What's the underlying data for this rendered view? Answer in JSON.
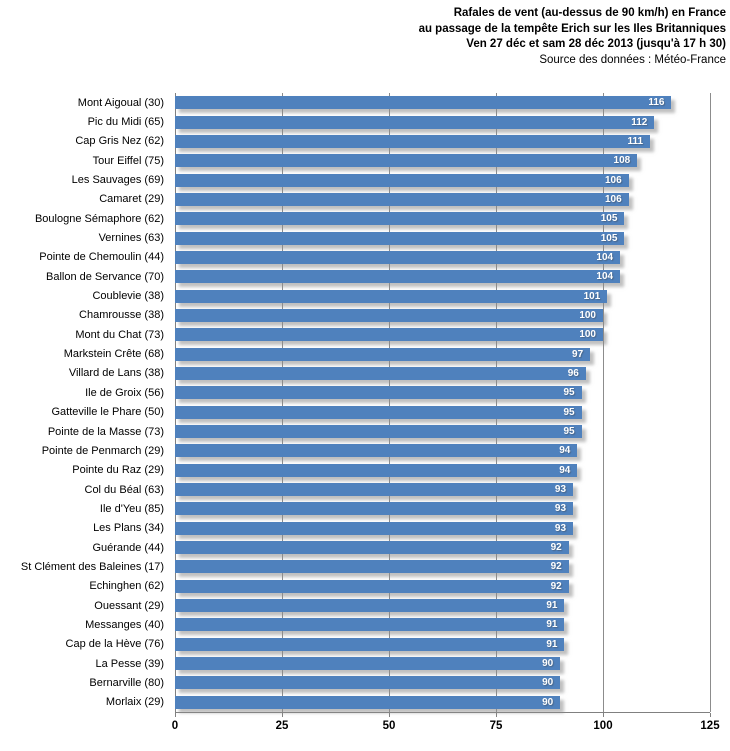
{
  "title": {
    "lines": [
      "Rafales de vent (au-dessus de 90 km/h) en France",
      "au passage  de la tempête Erich sur les Iles Britanniques",
      "Ven 27 déc et sam 28 déc 2013 (jusqu'à 17 h 30)",
      "Source des données : Météo-France"
    ]
  },
  "chart_data": {
    "type": "bar",
    "orientation": "horizontal",
    "title": "Rafales de vent (au-dessus de 90 km/h) en France au passage de la tempête Erich sur les Iles Britanniques Ven 27 déc et sam 28 déc 2013 (jusqu'à 17 h 30)",
    "source": "Source des données : Météo-France",
    "categories": [
      "Mont Aigoual (30)",
      "Pic du Midi (65)",
      "Cap Gris Nez (62)",
      "Tour Eiffel (75)",
      "Les Sauvages (69)",
      "Camaret (29)",
      "Boulogne Sémaphore (62)",
      "Vernines (63)",
      "Pointe de Chemoulin (44)",
      "Ballon de Servance (70)",
      "Coublevie (38)",
      "Chamrousse (38)",
      "Mont du Chat (73)",
      "Markstein Crête (68)",
      "Villard de Lans (38)",
      "Ile de Groix (56)",
      "Gatteville le Phare (50)",
      "Pointe de la Masse (73)",
      "Pointe de Penmarch (29)",
      "Pointe du Raz (29)",
      "Col du Béal (63)",
      "Ile d'Yeu (85)",
      "Les Plans (34)",
      "Guérande (44)",
      "St Clément des Baleines (17)",
      "Echinghen (62)",
      "Ouessant (29)",
      "Messanges (40)",
      "Cap de la Hève (76)",
      "La Pesse (39)",
      "Bernarville (80)",
      "Morlaix (29)"
    ],
    "values": [
      116,
      112,
      111,
      108,
      106,
      106,
      105,
      105,
      104,
      104,
      101,
      100,
      100,
      97,
      96,
      95,
      95,
      95,
      94,
      94,
      93,
      93,
      93,
      92,
      92,
      92,
      91,
      91,
      91,
      90,
      90,
      90
    ],
    "xlim": [
      0,
      125
    ],
    "x_ticks": [
      0,
      25,
      50,
      75,
      100,
      125
    ],
    "grid": true,
    "legend": "none",
    "bar_color": "#4F81BD",
    "value_label_color": "#FFFFFF",
    "gridline_color": "#8c8c8c",
    "axis_color": "#808080"
  }
}
